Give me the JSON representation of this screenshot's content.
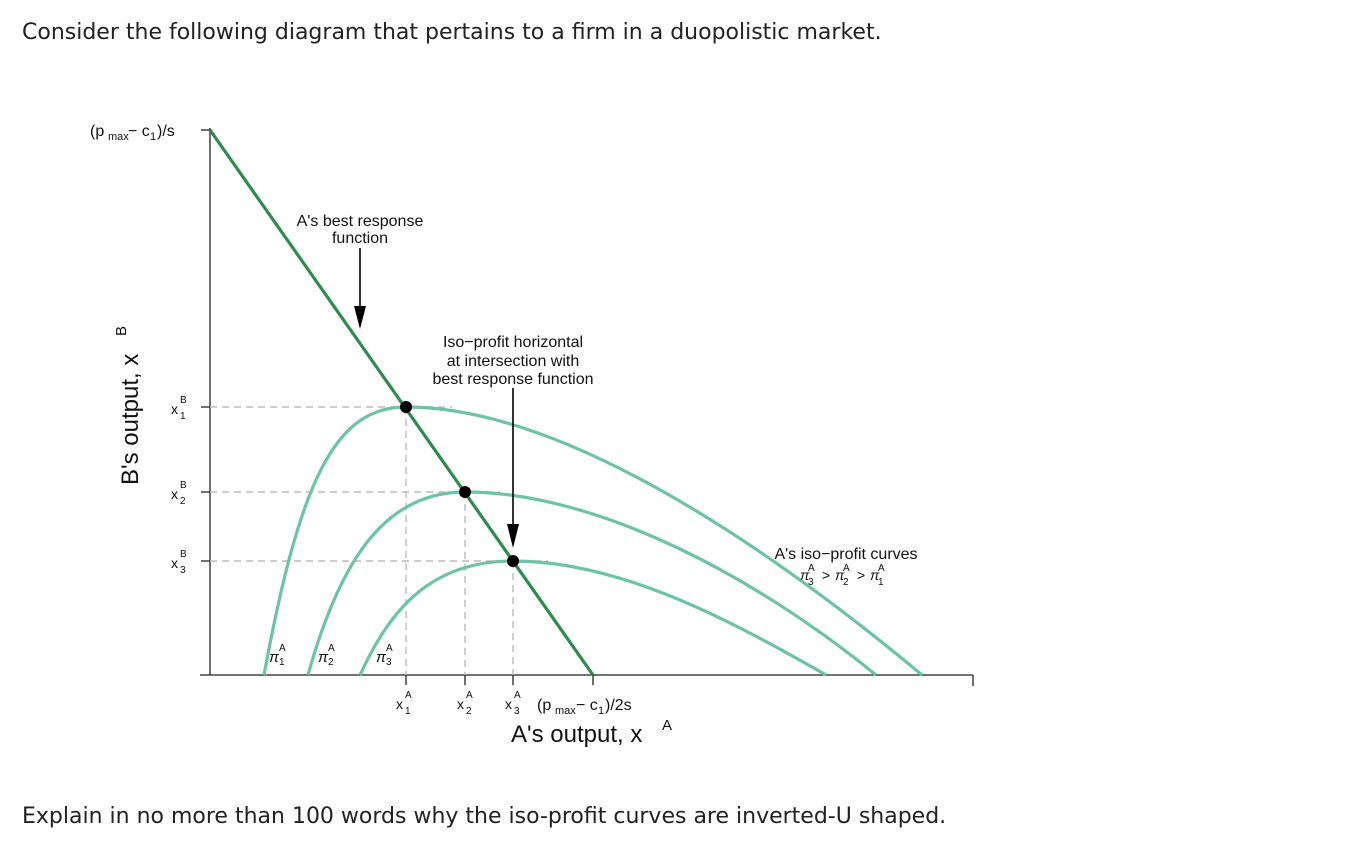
{
  "question": {
    "intro": "Consider the following diagram that pertains to a firm in a duopolistic market.",
    "prompt": "Explain in no more than 100 words why the iso-profit curves are inverted-U shaped."
  },
  "diagram": {
    "y_axis": {
      "title_main": "B's output, x",
      "title_sup": "B",
      "top_label": "(pmax − c1)/s",
      "ticks": [
        {
          "base": "x",
          "sup": "B",
          "sub": "1"
        },
        {
          "base": "x",
          "sup": "B",
          "sub": "2"
        },
        {
          "base": "x",
          "sup": "B",
          "sub": "3"
        }
      ]
    },
    "x_axis": {
      "title_main": "A's output, x",
      "title_sup": "A",
      "end_label": "(pmax − c1)/2s",
      "ticks": [
        {
          "base": "x",
          "sup": "A",
          "sub": "1"
        },
        {
          "base": "x",
          "sup": "A",
          "sub": "2"
        },
        {
          "base": "x",
          "sup": "A",
          "sub": "3"
        }
      ]
    },
    "annotations": {
      "best_response_line1": "A's best response",
      "best_response_line2": "function",
      "iso_horizontal_line1": "Iso−profit horizontal",
      "iso_horizontal_line2": "at intersection with",
      "iso_horizontal_line3": "best response function",
      "iso_curves_title": "A's iso−profit curves",
      "iso_curves_order": "π3 > π2 > π1"
    },
    "curve_labels": [
      {
        "base": "π",
        "sup": "A",
        "sub": "1"
      },
      {
        "base": "π",
        "sup": "A",
        "sub": "2"
      },
      {
        "base": "π",
        "sup": "A",
        "sub": "3"
      }
    ],
    "colors": {
      "best_response": "#2e8b4e",
      "iso_profit": "#6cc3a6",
      "guides": "#bbbbbb",
      "axis": "#222222"
    }
  }
}
